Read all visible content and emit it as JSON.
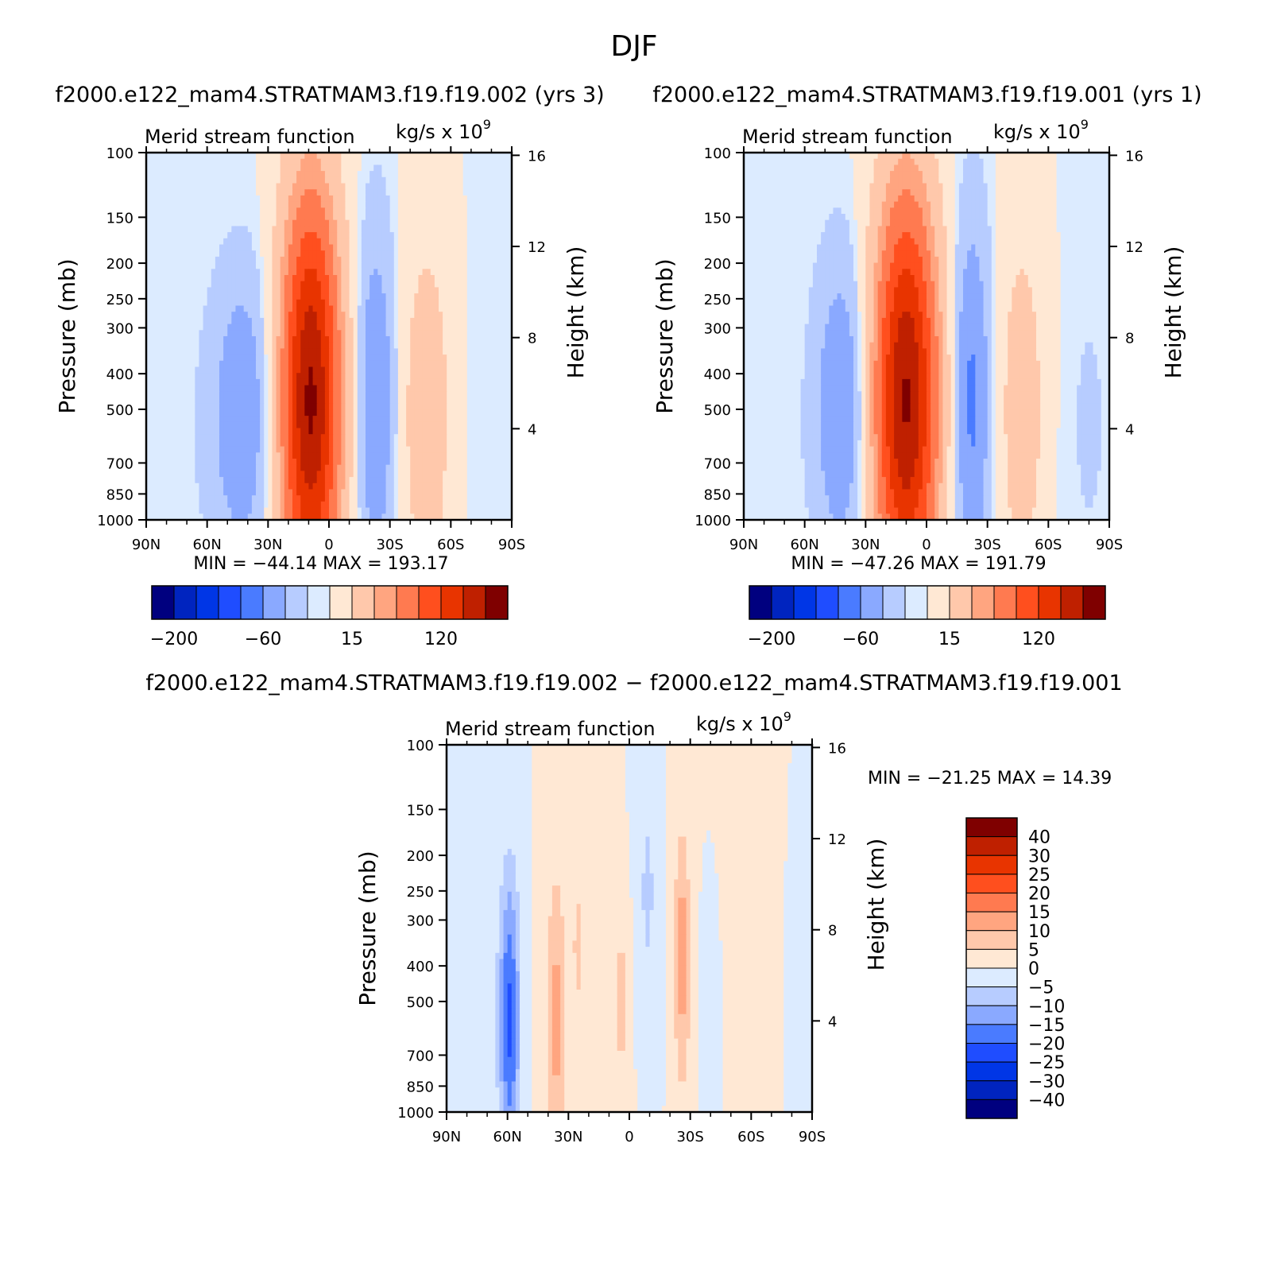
{
  "title": "DJF",
  "palettes": {
    "main": [
      "#00007f",
      "#0024bf",
      "#0036e6",
      "#1f4dff",
      "#4a7bff",
      "#8aa9ff",
      "#b7ccff",
      "#dcebff",
      "#ffe8d4",
      "#ffc8ab",
      "#ffa580",
      "#ff7a50",
      "#ff4f1e",
      "#e83400",
      "#bf2000",
      "#7f0000"
    ],
    "diff": [
      "#00007f",
      "#0024bf",
      "#0036e6",
      "#1f4dff",
      "#4a7bff",
      "#8aa9ff",
      "#b7ccff",
      "#dcebff",
      "#ffe8d4",
      "#ffc8ab",
      "#ffa580",
      "#ff7a50",
      "#ff4f1e",
      "#e83400",
      "#bf2000",
      "#7f0000"
    ]
  },
  "chart_data": [
    {
      "type": "heatmap",
      "case_title": "f2000.e122_mam4.STRATMAM3.f19.f19.002 (yrs 3)",
      "left_title": "Merid stream function",
      "units_base": "kg/s x 10",
      "units_exp": "9",
      "ylabel": "Pressure (mb)",
      "y2label": "Height (km)",
      "x_ticks": [
        "90N",
        "60N",
        "30N",
        "0",
        "30S",
        "60S",
        "90S"
      ],
      "y_ticks": [
        "100",
        "150",
        "200",
        "250",
        "300",
        "400",
        "500",
        "700",
        "850",
        "1000"
      ],
      "y_tick_values": [
        100,
        150,
        200,
        250,
        300,
        400,
        500,
        700,
        850,
        1000
      ],
      "y2_ticks": [
        "16",
        "12",
        "8",
        "4"
      ],
      "y2_tick_values": [
        16,
        12,
        8,
        4
      ],
      "xlim": [
        90,
        -90
      ],
      "ylim": [
        100,
        1000
      ],
      "min_label": "MIN = −44.14",
      "max_label": "MAX = 193.17",
      "min": -44.14,
      "max": 193.17,
      "colorbar_labels": [
        "−200",
        "−60",
        "15",
        "120"
      ],
      "field": [
        {
          "lat": 73,
          "amp": -3,
          "w": 20,
          "p": 600,
          "sp": 1.2
        },
        {
          "lat": 43,
          "amp": -38,
          "w": 14,
          "p": 520,
          "sp": 0.85
        },
        {
          "lat": 9,
          "amp": 185,
          "w": 14,
          "p": 470,
          "sp": 1.25
        },
        {
          "lat": -23,
          "amp": -40,
          "w": 9,
          "p": 480,
          "sp": 1.05
        },
        {
          "lat": -48,
          "amp": 30,
          "w": 12,
          "p": 520,
          "sp": 1.1
        },
        {
          "lat": -80,
          "amp": -5,
          "w": 14,
          "p": 550,
          "sp": 1.2
        }
      ]
    },
    {
      "type": "heatmap",
      "case_title": "f2000.e122_mam4.STRATMAM3.f19.f19.001 (yrs 1)",
      "left_title": "Merid stream function",
      "units_base": "kg/s x 10",
      "units_exp": "9",
      "ylabel": "Pressure (mb)",
      "y2label": "Height (km)",
      "x_ticks": [
        "90N",
        "60N",
        "30N",
        "0",
        "30S",
        "60S",
        "90S"
      ],
      "y_ticks": [
        "100",
        "150",
        "200",
        "250",
        "300",
        "400",
        "500",
        "700",
        "850",
        "1000"
      ],
      "y_tick_values": [
        100,
        150,
        200,
        250,
        300,
        400,
        500,
        700,
        850,
        1000
      ],
      "y2_ticks": [
        "16",
        "12",
        "8",
        "4"
      ],
      "y2_tick_values": [
        16,
        12,
        8,
        4
      ],
      "xlim": [
        90,
        -90
      ],
      "ylim": [
        100,
        1000
      ],
      "min_label": "MIN = −47.26",
      "max_label": "MAX = 191.79",
      "min": -47.26,
      "max": 191.79,
      "colorbar_labels": [
        "−200",
        "−60",
        "15",
        "120"
      ],
      "field": [
        {
          "lat": 73,
          "amp": -3,
          "w": 20,
          "p": 600,
          "sp": 1.2
        },
        {
          "lat": 42,
          "amp": -40,
          "w": 12,
          "p": 500,
          "sp": 0.9
        },
        {
          "lat": 10,
          "amp": 183,
          "w": 15,
          "p": 470,
          "sp": 1.25
        },
        {
          "lat": -22,
          "amp": -45,
          "w": 9,
          "p": 470,
          "sp": 1.1
        },
        {
          "lat": -47,
          "amp": 28,
          "w": 11,
          "p": 500,
          "sp": 1.1
        },
        {
          "lat": -80,
          "amp": -6,
          "w": 14,
          "p": 550,
          "sp": 1.2
        }
      ]
    },
    {
      "type": "heatmap",
      "case_title": "f2000.e122_mam4.STRATMAM3.f19.f19.002 − f2000.e122_mam4.STRATMAM3.f19.f19.001",
      "left_title": "Merid stream function",
      "units_base": "kg/s x 10",
      "units_exp": "9",
      "ylabel": "Pressure (mb)",
      "y2label": "Height (km)",
      "x_ticks": [
        "90N",
        "60N",
        "30N",
        "0",
        "30S",
        "60S",
        "90S"
      ],
      "y_ticks": [
        "100",
        "150",
        "200",
        "250",
        "300",
        "400",
        "500",
        "700",
        "850",
        "1000"
      ],
      "y_tick_values": [
        100,
        150,
        200,
        250,
        300,
        400,
        500,
        700,
        850,
        1000
      ],
      "y2_ticks": [
        "16",
        "12",
        "8",
        "4"
      ],
      "y2_tick_values": [
        16,
        12,
        8,
        4
      ],
      "xlim": [
        90,
        -90
      ],
      "ylim": [
        100,
        1000
      ],
      "min_label": "MIN = −21.25",
      "max_label": "MAX =  14.39",
      "min": -21.25,
      "max": 14.39,
      "colorbar_labels": [
        "40",
        "30",
        "25",
        "20",
        "15",
        "10",
        "5",
        "0",
        "−5",
        "−10",
        "−15",
        "−20",
        "−25",
        "−30",
        "−40"
      ],
      "field": [
        {
          "lat": 75,
          "amp": -3,
          "w": 10,
          "p": 600,
          "sp": 1.2
        },
        {
          "lat": 59,
          "amp": -21,
          "w": 5,
          "p": 560,
          "sp": 0.9
        },
        {
          "lat": 36,
          "amp": 12,
          "w": 5,
          "p": 560,
          "sp": 0.9
        },
        {
          "lat": 25,
          "amp": 6,
          "w": 4,
          "p": 350,
          "sp": 0.6
        },
        {
          "lat": 4,
          "amp": 7,
          "w": 4,
          "p": 500,
          "sp": 0.6
        },
        {
          "lat": -9,
          "amp": -6,
          "w": 5,
          "p": 250,
          "sp": 0.8
        },
        {
          "lat": -26,
          "amp": 13,
          "w": 4,
          "p": 380,
          "sp": 0.8
        },
        {
          "lat": -40,
          "amp": -5,
          "w": 4,
          "p": 600,
          "sp": 0.7
        },
        {
          "lat": -62,
          "amp": 1.2,
          "w": 20,
          "p": 500,
          "sp": 1.6
        },
        {
          "lat": -85,
          "amp": -3,
          "w": 8,
          "p": 600,
          "sp": 1.2
        }
      ]
    }
  ]
}
